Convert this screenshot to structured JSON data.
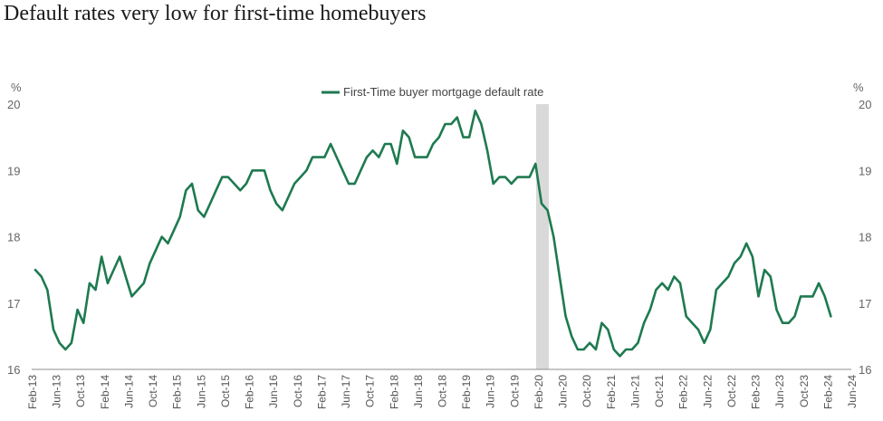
{
  "title": "Default rates very low for first-time homebuyers",
  "chart_data": {
    "type": "line",
    "title": "Default rates very low for first-time homebuyers",
    "unit_left": "%",
    "unit_right": "%",
    "ylim": [
      16,
      20
    ],
    "yticks": [
      16,
      17,
      18,
      19,
      20
    ],
    "xticks": [
      "Feb-13",
      "Jun-13",
      "Oct-13",
      "Feb-14",
      "Jun-14",
      "Oct-14",
      "Feb-15",
      "Jun-15",
      "Oct-15",
      "Feb-16",
      "Jun-16",
      "Oct-16",
      "Feb-17",
      "Jun-17",
      "Oct-17",
      "Feb-18",
      "Jun-18",
      "Oct-18",
      "Feb-19",
      "Jun-19",
      "Oct-19",
      "Feb-20",
      "Jun-20",
      "Oct-20",
      "Feb-21",
      "Jun-21",
      "Oct-21",
      "Feb-22",
      "Jun-22",
      "Oct-22",
      "Feb-23",
      "Jun-23",
      "Oct-23",
      "Feb-24",
      "Jun-24"
    ],
    "legend": "top-center",
    "grid": false,
    "shaded_period": {
      "start": "Feb-20",
      "end": "Apr-20",
      "color": "#d9d9d9"
    },
    "series": [
      {
        "name": "First-Time buyer mortgage default rate",
        "color": "#1e7a50",
        "x_start": "Feb-13",
        "frequency": "monthly",
        "values": [
          17.5,
          17.4,
          17.2,
          16.6,
          16.4,
          16.3,
          16.4,
          16.9,
          16.7,
          17.3,
          17.2,
          17.7,
          17.3,
          17.5,
          17.7,
          17.4,
          17.1,
          17.2,
          17.3,
          17.6,
          17.8,
          18.0,
          17.9,
          18.1,
          18.3,
          18.7,
          18.8,
          18.4,
          18.3,
          18.5,
          18.7,
          18.9,
          18.9,
          18.8,
          18.7,
          18.8,
          19.0,
          19.0,
          19.0,
          18.7,
          18.5,
          18.4,
          18.6,
          18.8,
          18.9,
          19.0,
          19.2,
          19.2,
          19.2,
          19.4,
          19.2,
          19.0,
          18.8,
          18.8,
          19.0,
          19.2,
          19.3,
          19.2,
          19.4,
          19.4,
          19.1,
          19.6,
          19.5,
          19.2,
          19.2,
          19.2,
          19.4,
          19.5,
          19.7,
          19.7,
          19.8,
          19.5,
          19.5,
          19.9,
          19.7,
          19.3,
          18.8,
          18.9,
          18.9,
          18.8,
          18.9,
          18.9,
          18.9,
          19.1,
          18.5,
          18.4,
          18.0,
          17.4,
          16.8,
          16.5,
          16.3,
          16.3,
          16.4,
          16.3,
          16.7,
          16.6,
          16.3,
          16.2,
          16.3,
          16.3,
          16.4,
          16.7,
          16.9,
          17.2,
          17.3,
          17.2,
          17.4,
          17.3,
          16.8,
          16.7,
          16.6,
          16.4,
          16.6,
          17.2,
          17.3,
          17.4,
          17.6,
          17.7,
          17.9,
          17.7,
          17.1,
          17.5,
          17.4,
          16.9,
          16.7,
          16.7,
          16.8,
          17.1,
          17.1,
          17.1,
          17.3,
          17.1,
          16.8
        ]
      }
    ]
  }
}
